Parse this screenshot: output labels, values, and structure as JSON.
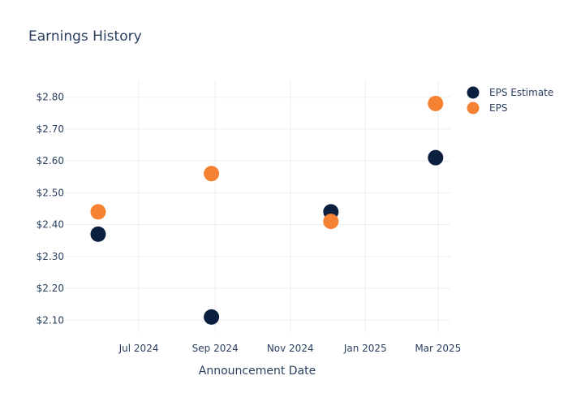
{
  "chart_data": {
    "type": "scatter",
    "title": "Earnings History",
    "xlabel": "Announcement Date",
    "ylabel": "",
    "x_tick_labels": [
      {
        "date": "2024-07-01",
        "label": "Jul 2024"
      },
      {
        "date": "2024-09-01",
        "label": "Sep 2024"
      },
      {
        "date": "2024-11-01",
        "label": "Nov 2024"
      },
      {
        "date": "2025-01-01",
        "label": "Jan 2025"
      },
      {
        "date": "2025-03-01",
        "label": "Mar 2025"
      }
    ],
    "y_tick_labels": [
      "$2.10",
      "$2.20",
      "$2.30",
      "$2.40",
      "$2.50",
      "$2.60",
      "$2.70",
      "$2.80"
    ],
    "y_ticks": [
      2.1,
      2.2,
      2.3,
      2.4,
      2.5,
      2.6,
      2.7,
      2.8
    ],
    "xlim": [
      "2024-05-02",
      "2025-03-11"
    ],
    "ylim": [
      2.06,
      2.85
    ],
    "grid": true,
    "legend_position": "top-right",
    "series": [
      {
        "name": "EPS Estimate",
        "color": "#0b1f3f",
        "points": [
          {
            "x": "2024-05-29",
            "y": 2.37
          },
          {
            "x": "2024-08-29",
            "y": 2.11
          },
          {
            "x": "2024-12-04",
            "y": 2.44
          },
          {
            "x": "2025-02-27",
            "y": 2.61
          }
        ]
      },
      {
        "name": "EPS",
        "color": "#f58233",
        "points": [
          {
            "x": "2024-05-29",
            "y": 2.44
          },
          {
            "x": "2024-08-29",
            "y": 2.56
          },
          {
            "x": "2024-12-04",
            "y": 2.41
          },
          {
            "x": "2025-02-27",
            "y": 2.78
          }
        ]
      }
    ]
  }
}
